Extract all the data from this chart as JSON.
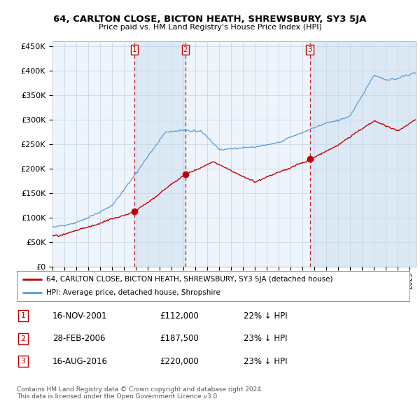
{
  "title": "64, CARLTON CLOSE, BICTON HEATH, SHREWSBURY, SY3 5JA",
  "subtitle": "Price paid vs. HM Land Registry's House Price Index (HPI)",
  "ylabel_ticks": [
    "£0",
    "£50K",
    "£100K",
    "£150K",
    "£200K",
    "£250K",
    "£300K",
    "£350K",
    "£400K",
    "£450K"
  ],
  "ytick_values": [
    0,
    50000,
    100000,
    150000,
    200000,
    250000,
    300000,
    350000,
    400000,
    450000
  ],
  "ylim": [
    0,
    460000
  ],
  "xlim_start": 1995.0,
  "xlim_end": 2025.5,
  "hpi_color": "#5b9bd5",
  "price_color": "#c00000",
  "vline_color": "#c00000",
  "shade_color": "#dce9f5",
  "plot_bg": "#eef4fb",
  "transactions": [
    {
      "num": 1,
      "date_x": 2001.88,
      "price": 112000,
      "label": "1"
    },
    {
      "num": 2,
      "date_x": 2006.16,
      "price": 187500,
      "label": "2"
    },
    {
      "num": 3,
      "date_x": 2016.62,
      "price": 220000,
      "label": "3"
    }
  ],
  "legend_entries": [
    "64, CARLTON CLOSE, BICTON HEATH, SHREWSBURY, SY3 5JA (detached house)",
    "HPI: Average price, detached house, Shropshire"
  ],
  "table_rows": [
    {
      "num": "1",
      "date": "16-NOV-2001",
      "price": "£112,000",
      "pct": "22% ↓ HPI"
    },
    {
      "num": "2",
      "date": "28-FEB-2006",
      "price": "£187,500",
      "pct": "23% ↓ HPI"
    },
    {
      "num": "3",
      "date": "16-AUG-2016",
      "price": "£220,000",
      "pct": "23% ↓ HPI"
    }
  ],
  "footer": "Contains HM Land Registry data © Crown copyright and database right 2024.\nThis data is licensed under the Open Government Licence v3.0.",
  "background_color": "#ffffff",
  "grid_color": "#c8d8e8"
}
